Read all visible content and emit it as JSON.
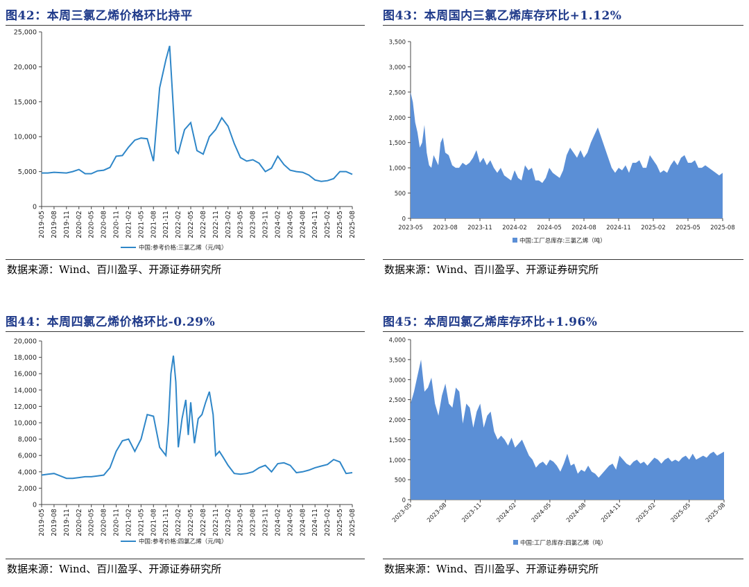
{
  "panels": [
    {
      "title": "图42：本周三氯乙烯价格环比持平",
      "source": "数据来源：Wind、百川盈孚、开源证券研究所",
      "chart_data": {
        "type": "line",
        "color": "#2e86c8",
        "legend": "中国:参考价格:三氯乙烯（元/吨）",
        "legend_position": "bottom",
        "ylim": [
          0,
          25000
        ],
        "yticks": [
          "0",
          "5,000",
          "10,000",
          "15,000",
          "20,000",
          "25,000"
        ],
        "ytick_values": [
          0,
          5000,
          10000,
          15000,
          20000,
          25000
        ],
        "xticks": [
          "2019-05",
          "2019-08",
          "2019-11",
          "2020-02",
          "2020-05",
          "2020-08",
          "2020-11",
          "2021-02",
          "2021-05",
          "2021-08",
          "2021-11",
          "2022-02",
          "2022-05",
          "2022-08",
          "2022-11",
          "2023-02",
          "2023-05",
          "2023-08",
          "2023-11",
          "2024-02",
          "2024-05",
          "2024-08",
          "2024-11",
          "2025-02",
          "2025-05",
          "2025-08"
        ],
        "x": [
          0,
          0.5,
          1,
          1.5,
          2,
          2.5,
          3,
          3.5,
          4,
          4.5,
          5,
          5.5,
          6,
          6.5,
          7,
          7.5,
          8,
          8.5,
          9,
          9.5,
          10,
          10.3,
          10.6,
          10.8,
          11,
          11.2,
          11.5,
          12,
          12.5,
          13,
          13.5,
          14,
          14.5,
          15,
          15.5,
          16,
          16.5,
          17,
          17.5,
          18,
          18.5,
          19,
          19.5,
          20,
          20.5,
          21,
          21.5,
          22,
          22.5,
          23,
          23.5,
          24,
          24.5,
          25
        ],
        "y": [
          4800,
          4800,
          4900,
          4850,
          4800,
          5000,
          5300,
          4700,
          4700,
          5100,
          5200,
          5600,
          7200,
          7300,
          8500,
          9500,
          9800,
          9700,
          6500,
          17000,
          21000,
          23000,
          14000,
          8000,
          7600,
          9000,
          11000,
          12000,
          8000,
          7500,
          10000,
          11000,
          12700,
          11500,
          9000,
          7000,
          6500,
          6700,
          6200,
          5000,
          5500,
          7200,
          6000,
          5200,
          5000,
          4900,
          4500,
          3800,
          3600,
          3700,
          4000,
          5000,
          5000,
          4600
        ]
      }
    },
    {
      "title": "图43：本周国内三氯乙烯库存环比+1.12%",
      "source": "数据来源：Wind、百川盈孚、开源证券研究所",
      "chart_data": {
        "type": "area",
        "color": "#5b8fd6",
        "legend": "中国:工厂总库存:三氯乙烯（吨）",
        "legend_position": "bottom",
        "ylim": [
          0,
          3500
        ],
        "yticks": [
          "0",
          "500",
          "1,000",
          "1,500",
          "2,000",
          "2,500",
          "3,000",
          "3,500"
        ],
        "ytick_values": [
          0,
          500,
          1000,
          1500,
          2000,
          2500,
          3000,
          3500
        ],
        "xticks": [
          "2023-05",
          "2023-08",
          "2023-11",
          "2024-02",
          "2024-05",
          "2024-08",
          "2024-11",
          "2025-02",
          "2025-05",
          "2025-08"
        ],
        "x": [
          0,
          0.2,
          0.4,
          0.6,
          0.8,
          1,
          1.2,
          1.4,
          1.6,
          1.8,
          2,
          2.2,
          2.4,
          2.6,
          2.8,
          3,
          3.3,
          3.6,
          3.9,
          4.2,
          4.5,
          4.8,
          5.1,
          5.4,
          5.7,
          6,
          6.3,
          6.6,
          6.9,
          7.2,
          7.5,
          7.8,
          8.1,
          8.4,
          8.7,
          9,
          9.3,
          9.6,
          9.9,
          10.2,
          10.5,
          10.8,
          11.1,
          11.4,
          11.7,
          12,
          12.3,
          12.6,
          12.9,
          13.2,
          13.5,
          13.8,
          14.1,
          14.4,
          14.7,
          15,
          15.3,
          15.6,
          15.9,
          16.2,
          16.5,
          16.8,
          17.1,
          17.4,
          17.7,
          18,
          18.3,
          18.6,
          18.9,
          19.2,
          19.5,
          19.8,
          20.1,
          20.4,
          20.7,
          21,
          21.3,
          21.6,
          21.9,
          22.2,
          22.5,
          22.8,
          23.1,
          23.4,
          23.7,
          24,
          24.3,
          24.6,
          24.9,
          25.2,
          25.5,
          25.8,
          26.1,
          26.4,
          26.7,
          27
        ],
        "y": [
          2500,
          2300,
          1900,
          1700,
          1400,
          1500,
          1850,
          1300,
          1050,
          1000,
          1250,
          1150,
          1050,
          1500,
          1600,
          1300,
          1250,
          1050,
          1000,
          1000,
          1100,
          1050,
          1100,
          1200,
          1350,
          1100,
          1200,
          1050,
          1150,
          1000,
          900,
          1000,
          850,
          800,
          750,
          950,
          800,
          750,
          1050,
          950,
          1000,
          750,
          750,
          700,
          800,
          1000,
          900,
          850,
          800,
          950,
          1250,
          1400,
          1300,
          1200,
          1350,
          1200,
          1300,
          1500,
          1650,
          1800,
          1600,
          1400,
          1200,
          1000,
          900,
          1000,
          950,
          1050,
          900,
          1100,
          1100,
          1150,
          1000,
          1000,
          1250,
          1150,
          1050,
          900,
          950,
          900,
          1050,
          1150,
          1050,
          1200,
          1250,
          1100,
          1100,
          1150,
          1000,
          1000,
          1050,
          1000,
          950,
          900,
          850,
          900
        ]
      }
    },
    {
      "title": "图44：本周四氯乙烯价格环比-0.29%",
      "source": "数据来源：Wind、百川盈孚、开源证券研究所",
      "chart_data": {
        "type": "line",
        "color": "#2e86c8",
        "legend": "中国:参考价格:四氯乙烯（元/吨）",
        "legend_position": "bottom",
        "ylim": [
          0,
          20000
        ],
        "yticks": [
          "0",
          "2,000",
          "4,000",
          "6,000",
          "8,000",
          "10,000",
          "12,000",
          "14,000",
          "16,000",
          "18,000",
          "20,000"
        ],
        "ytick_values": [
          0,
          2000,
          4000,
          6000,
          8000,
          10000,
          12000,
          14000,
          16000,
          18000,
          20000
        ],
        "xticks": [
          "2019-05",
          "2019-08",
          "2019-11",
          "2020-02",
          "2020-05",
          "2020-08",
          "2020-11",
          "2021-02",
          "2021-05",
          "2021-08",
          "2021-11",
          "2022-02",
          "2022-05",
          "2022-08",
          "2022-11",
          "2023-02",
          "2023-05",
          "2023-08",
          "2023-11",
          "2024-02",
          "2024-05",
          "2024-08",
          "2024-11",
          "2025-02",
          "2025-05",
          "2025-08"
        ],
        "x": [
          0,
          0.5,
          1,
          1.5,
          2,
          2.5,
          3,
          3.5,
          4,
          4.5,
          5,
          5.5,
          6,
          6.5,
          7,
          7.5,
          8,
          8.5,
          9,
          9.5,
          10,
          10.2,
          10.4,
          10.6,
          10.8,
          11,
          11.3,
          11.6,
          11.8,
          12,
          12.3,
          12.6,
          12.9,
          13.2,
          13.5,
          13.8,
          14,
          14.3,
          14.6,
          15,
          15.5,
          16,
          16.5,
          17,
          17.5,
          18,
          18.5,
          19,
          19.5,
          20,
          20.5,
          21,
          21.5,
          22,
          22.5,
          23,
          23.5,
          24,
          24.5,
          25
        ],
        "y": [
          3600,
          3700,
          3800,
          3500,
          3200,
          3200,
          3300,
          3400,
          3400,
          3500,
          3600,
          4500,
          6500,
          7800,
          8000,
          6500,
          8000,
          11000,
          10800,
          7000,
          6000,
          10000,
          16000,
          18200,
          15000,
          7000,
          10500,
          12800,
          8500,
          12500,
          7500,
          10500,
          11000,
          12500,
          13800,
          11000,
          6000,
          6500,
          5800,
          4800,
          3800,
          3700,
          3800,
          4000,
          4500,
          4800,
          4000,
          5000,
          5100,
          4800,
          3900,
          4000,
          4200,
          4500,
          4700,
          4900,
          5500,
          5200,
          3800,
          3900
        ]
      }
    },
    {
      "title": "图45：本周四氯乙烯库存环比+1.96%",
      "source": "数据来源：Wind、百川盈孚、开源证券研究所",
      "chart_data": {
        "type": "area",
        "color": "#5b8fd6",
        "legend": "中国:工厂总库存:四氯乙烯（吨）",
        "legend_position": "bottom",
        "ylim": [
          0,
          4000
        ],
        "yticks": [
          "0",
          "500",
          "1,000",
          "1,500",
          "2,000",
          "2,500",
          "3,000",
          "3,500",
          "4,000"
        ],
        "ytick_values": [
          0,
          500,
          1000,
          1500,
          2000,
          2500,
          3000,
          3500,
          4000
        ],
        "xticks": [
          "2023-05",
          "2023-08",
          "2023-11",
          "2024-02",
          "2024-05",
          "2024-08",
          "2024-11",
          "2025-02",
          "2025-05",
          "2025-08"
        ],
        "x": [
          0,
          0.3,
          0.6,
          0.9,
          1.2,
          1.5,
          1.8,
          2.1,
          2.4,
          2.7,
          3,
          3.3,
          3.6,
          3.9,
          4.2,
          4.5,
          4.8,
          5.1,
          5.4,
          5.7,
          6,
          6.3,
          6.6,
          6.9,
          7.2,
          7.5,
          7.8,
          8.1,
          8.4,
          8.7,
          9,
          9.3,
          9.6,
          9.9,
          10.2,
          10.5,
          10.8,
          11.1,
          11.4,
          11.7,
          12,
          12.3,
          12.6,
          12.9,
          13.2,
          13.5,
          13.8,
          14.1,
          14.4,
          14.7,
          15,
          15.3,
          15.6,
          15.9,
          16.2,
          16.5,
          16.8,
          17.1,
          17.4,
          17.7,
          18,
          18.3,
          18.6,
          18.9,
          19.2,
          19.5,
          19.8,
          20.1,
          20.4,
          20.7,
          21,
          21.3,
          21.6,
          21.9,
          22.2,
          22.5,
          22.8,
          23.1,
          23.4,
          23.7,
          24,
          24.3,
          24.6,
          24.9,
          25.2,
          25.5,
          25.8,
          26.1,
          26.4,
          26.7,
          27
        ],
        "y": [
          2400,
          2700,
          3100,
          3500,
          2700,
          2800,
          3050,
          2400,
          2100,
          2600,
          2900,
          2400,
          2300,
          2800,
          2700,
          1900,
          2400,
          2300,
          1800,
          2200,
          2400,
          1800,
          2100,
          2200,
          1700,
          1500,
          1600,
          1500,
          1350,
          1550,
          1300,
          1400,
          1500,
          1300,
          1100,
          1000,
          800,
          900,
          950,
          850,
          1000,
          950,
          850,
          700,
          900,
          1150,
          850,
          900,
          650,
          750,
          700,
          850,
          700,
          650,
          550,
          650,
          750,
          850,
          900,
          750,
          1100,
          1000,
          900,
          850,
          950,
          1000,
          900,
          950,
          850,
          950,
          1050,
          1000,
          900,
          1000,
          1050,
          950,
          1000,
          950,
          1050,
          1100,
          1000,
          1150,
          1000,
          1050,
          1100,
          1050,
          1150,
          1200,
          1100,
          1150,
          1200
        ]
      }
    }
  ]
}
